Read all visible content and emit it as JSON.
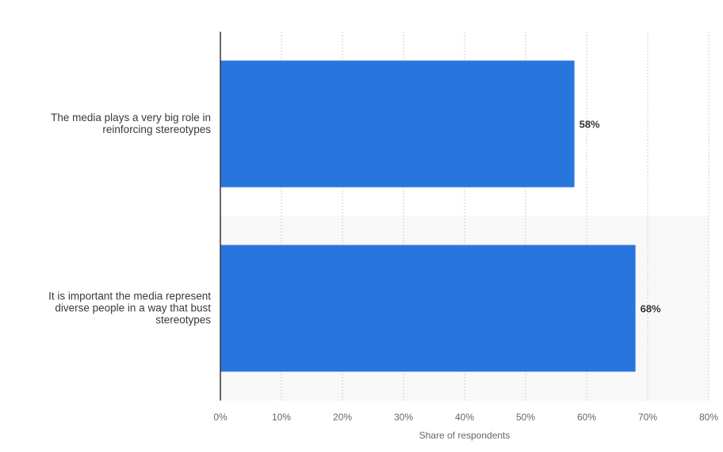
{
  "chart_data": {
    "type": "bar",
    "orientation": "horizontal",
    "categories": [
      "The media plays a very big role in reinforcing stereotypes",
      "It is important the media represent diverse people in a way that bust stereotypes"
    ],
    "category_lines": [
      [
        "The media plays a very big role in",
        "reinforcing stereotypes"
      ],
      [
        "It is important the media represent",
        "diverse people in a way that bust",
        "stereotypes"
      ]
    ],
    "values": [
      58,
      68
    ],
    "value_labels": [
      "58%",
      "68%"
    ],
    "xlabel": "Share of respondents",
    "ylabel": "",
    "xlim": [
      0,
      80
    ],
    "ticks": [
      0,
      10,
      20,
      30,
      40,
      50,
      60,
      70,
      80
    ],
    "tick_labels": [
      "0%",
      "10%",
      "20%",
      "30%",
      "40%",
      "50%",
      "60%",
      "70%",
      "80%"
    ],
    "grid": true,
    "bar_color": "#2876dd",
    "band_color": "#f8f8f8",
    "grid_color": "#cfcfcf",
    "axis_color": "#333333"
  }
}
